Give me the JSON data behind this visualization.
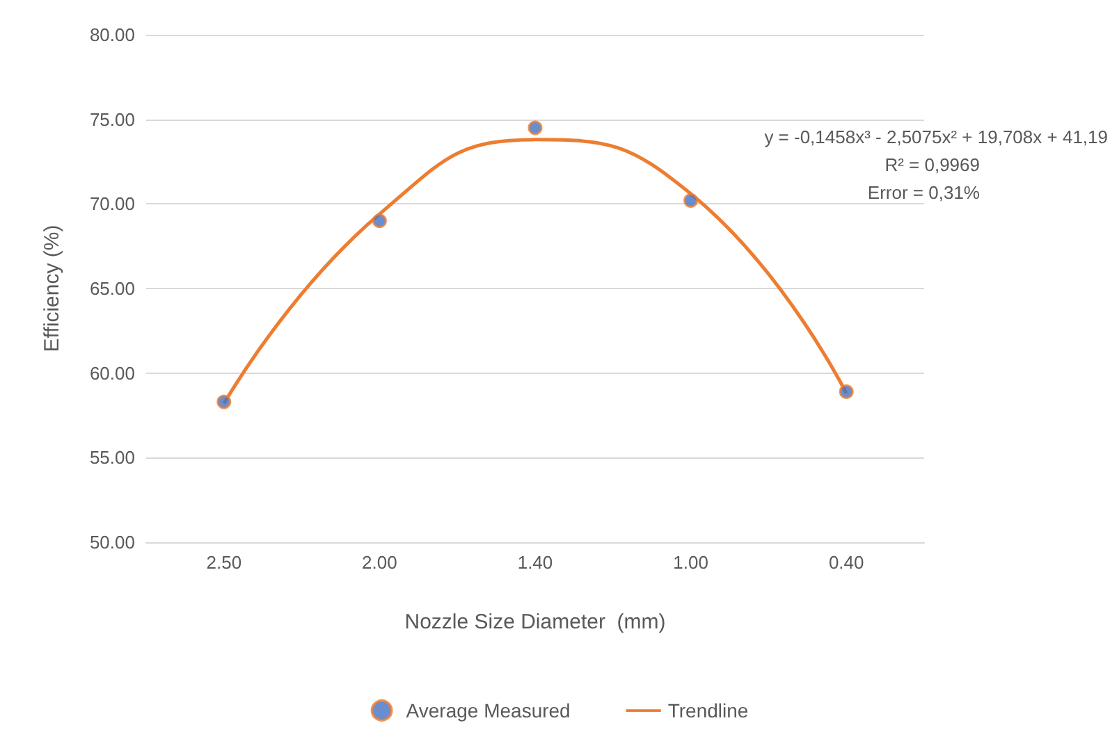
{
  "chart_data": {
    "type": "scatter",
    "xlabel": "Nozzle Size Diameter  (mm)",
    "ylabel": "Efficiency (%)",
    "categories": [
      "2.50",
      "2.00",
      "1.40",
      "1.00",
      "0.40"
    ],
    "series": [
      {
        "name": "Average Measured",
        "marker": "circle",
        "color": "#4472c4",
        "values": [
          58.3,
          69.0,
          74.5,
          70.2,
          58.9
        ]
      },
      {
        "name": "Trendline",
        "type": "line",
        "color": "#ed7d31",
        "x": [
          "2.50",
          "2.00",
          "1.40",
          "1.00",
          "0.40"
        ],
        "values": [
          58.2,
          69.4,
          73.8,
          70.6,
          58.8
        ]
      }
    ],
    "ylim": [
      50,
      80
    ],
    "yticks": [
      {
        "value": 50,
        "label": "50.00"
      },
      {
        "value": 55,
        "label": "55.00"
      },
      {
        "value": 60,
        "label": "60.00"
      },
      {
        "value": 65,
        "label": "65.00"
      },
      {
        "value": 70,
        "label": "70.00"
      },
      {
        "value": 75,
        "label": "75.00"
      },
      {
        "value": 80,
        "label": "80.00"
      }
    ],
    "grid": "y",
    "legend": "bottom",
    "annotations": [
      "y = -0,1458x³ - 2,5075x² + 19,708x + 41,19",
      "R² = 0,9969",
      "Error = 0,31%"
    ]
  }
}
